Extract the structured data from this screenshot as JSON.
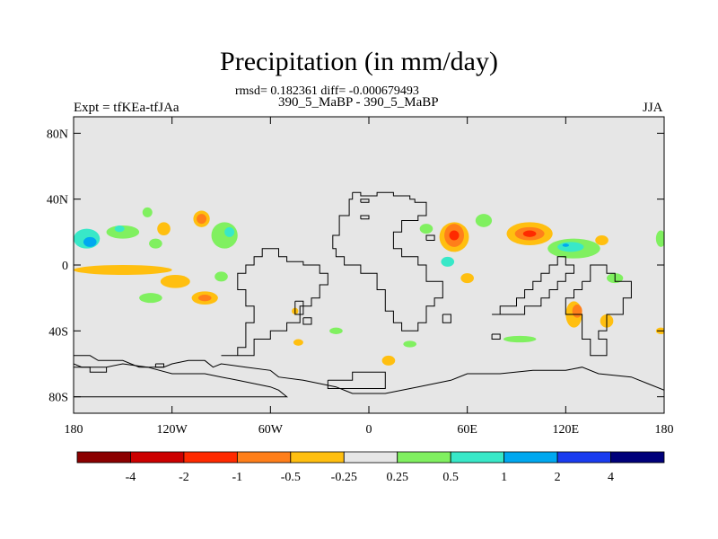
{
  "header": {
    "title": "Precipitation (in mm/day)",
    "stats": "rmsd= 0.182361 diff= -0.000679493",
    "case": "390_5_MaBP - 390_5_MaBP",
    "expt": "Expt = tfKEa-tfJAa",
    "season": "JJA"
  },
  "chart_data": {
    "type": "heatmap",
    "title": "Precipitation (in mm/day)",
    "xlim": [
      -180,
      180
    ],
    "ylim": [
      -90,
      90
    ],
    "x_ticks": [
      {
        "value": -180,
        "label": "180"
      },
      {
        "value": -120,
        "label": "120W"
      },
      {
        "value": -60,
        "label": "60W"
      },
      {
        "value": 0,
        "label": "0"
      },
      {
        "value": 60,
        "label": "60E"
      },
      {
        "value": 120,
        "label": "120E"
      },
      {
        "value": 180,
        "label": "180"
      }
    ],
    "y_ticks": [
      {
        "value": 80,
        "label": "80N"
      },
      {
        "value": 40,
        "label": "40N"
      },
      {
        "value": 0,
        "label": "0"
      },
      {
        "value": -40,
        "label": "40S"
      },
      {
        "value": -80,
        "label": "80S"
      }
    ],
    "background_color": "#e6e6e6",
    "colorbar": {
      "levels": [
        -4,
        -2,
        -1,
        -0.5,
        -0.25,
        0.25,
        0.5,
        1,
        2,
        4
      ],
      "labels": [
        "-4",
        "-2",
        "-1",
        "-0.5",
        "-0.25",
        "0.25",
        "0.5",
        "1",
        "2",
        "4"
      ],
      "colors": [
        "#8b0000",
        "#cc0000",
        "#ff2a00",
        "#ff7f1a",
        "#ffbf10",
        "#e6e6e6",
        "#80f060",
        "#38e8c8",
        "#00a8f0",
        "#1a3cf0",
        "#00007a"
      ]
    },
    "anomalies": [
      {
        "lon": -172,
        "lat": 16,
        "rx": 8,
        "ry": 6,
        "level": 0.5
      },
      {
        "lon": -170,
        "lat": 14,
        "rx": 4,
        "ry": 3,
        "level": 1
      },
      {
        "lon": -150,
        "lat": 20,
        "rx": 10,
        "ry": 4,
        "level": 0.25
      },
      {
        "lon": -152,
        "lat": 22,
        "rx": 3,
        "ry": 2,
        "level": 0.5
      },
      {
        "lon": -125,
        "lat": 22,
        "rx": 4,
        "ry": 4,
        "level": -0.25
      },
      {
        "lon": -130,
        "lat": 13,
        "rx": 4,
        "ry": 3,
        "level": 0.25
      },
      {
        "lon": -102,
        "lat": 28,
        "rx": 5,
        "ry": 5,
        "level": -0.25
      },
      {
        "lon": -102,
        "lat": 28,
        "rx": 3,
        "ry": 3,
        "level": -0.5
      },
      {
        "lon": -88,
        "lat": 18,
        "rx": 8,
        "ry": 8,
        "level": 0.25
      },
      {
        "lon": -85,
        "lat": 20,
        "rx": 3,
        "ry": 3,
        "level": 0.5
      },
      {
        "lon": -135,
        "lat": 32,
        "rx": 3,
        "ry": 3,
        "level": 0.25
      },
      {
        "lon": -150,
        "lat": -3,
        "rx": 30,
        "ry": 3,
        "level": -0.25
      },
      {
        "lon": -118,
        "lat": -10,
        "rx": 9,
        "ry": 4,
        "level": -0.25
      },
      {
        "lon": -100,
        "lat": -20,
        "rx": 8,
        "ry": 4,
        "level": -0.25
      },
      {
        "lon": -100,
        "lat": -20,
        "rx": 4,
        "ry": 2,
        "level": -0.5
      },
      {
        "lon": -133,
        "lat": -20,
        "rx": 7,
        "ry": 3,
        "level": 0.25
      },
      {
        "lon": -90,
        "lat": -7,
        "rx": 4,
        "ry": 3,
        "level": 0.25
      },
      {
        "lon": 52,
        "lat": 17,
        "rx": 9,
        "ry": 9,
        "level": -0.25
      },
      {
        "lon": 52,
        "lat": 18,
        "rx": 6,
        "ry": 7,
        "level": -0.5
      },
      {
        "lon": 52,
        "lat": 18,
        "rx": 3,
        "ry": 3,
        "level": -1
      },
      {
        "lon": 48,
        "lat": 2,
        "rx": 4,
        "ry": 3,
        "level": 0.5
      },
      {
        "lon": 70,
        "lat": 27,
        "rx": 5,
        "ry": 4,
        "level": 0.25
      },
      {
        "lon": 98,
        "lat": 19,
        "rx": 14,
        "ry": 7,
        "level": -0.25
      },
      {
        "lon": 98,
        "lat": 19,
        "rx": 9,
        "ry": 4,
        "level": -0.5
      },
      {
        "lon": 98,
        "lat": 19,
        "rx": 4,
        "ry": 2,
        "level": -1
      },
      {
        "lon": 125,
        "lat": 10,
        "rx": 16,
        "ry": 6,
        "level": 0.25
      },
      {
        "lon": 123,
        "lat": 11,
        "rx": 8,
        "ry": 3,
        "level": 0.5
      },
      {
        "lon": 120,
        "lat": 12,
        "rx": 2,
        "ry": 1,
        "level": 1
      },
      {
        "lon": 142,
        "lat": 15,
        "rx": 4,
        "ry": 3,
        "level": -0.25
      },
      {
        "lon": 178,
        "lat": 16,
        "rx": 3,
        "ry": 5,
        "level": 0.25
      },
      {
        "lon": 35,
        "lat": 22,
        "rx": 4,
        "ry": 3,
        "level": 0.25
      },
      {
        "lon": 125,
        "lat": -30,
        "rx": 5,
        "ry": 8,
        "level": -0.25
      },
      {
        "lon": 127,
        "lat": -28,
        "rx": 3,
        "ry": 4,
        "level": -0.5
      },
      {
        "lon": 145,
        "lat": -34,
        "rx": 4,
        "ry": 4,
        "level": -0.25
      },
      {
        "lon": 92,
        "lat": -45,
        "rx": 10,
        "ry": 2,
        "level": 0.25
      },
      {
        "lon": 150,
        "lat": -8,
        "rx": 5,
        "ry": 3,
        "level": 0.25
      },
      {
        "lon": 60,
        "lat": -8,
        "rx": 4,
        "ry": 3,
        "level": -0.25
      },
      {
        "lon": 12,
        "lat": -58,
        "rx": 4,
        "ry": 3,
        "level": -0.25
      },
      {
        "lon": -43,
        "lat": -47,
        "rx": 3,
        "ry": 2,
        "level": -0.25
      },
      {
        "lon": -20,
        "lat": -40,
        "rx": 4,
        "ry": 2,
        "level": 0.25
      },
      {
        "lon": 25,
        "lat": -48,
        "rx": 4,
        "ry": 2,
        "level": 0.25
      },
      {
        "lon": -45,
        "lat": -28,
        "rx": 2,
        "ry": 2,
        "level": -0.25
      },
      {
        "lon": 178,
        "lat": -40,
        "rx": 3,
        "ry": 2,
        "level": -0.25
      }
    ],
    "coastlines": [
      [
        [
          -10,
          44
        ],
        [
          -5,
          44
        ],
        [
          -5,
          42
        ],
        [
          5,
          42
        ],
        [
          5,
          44
        ],
        [
          15,
          44
        ],
        [
          15,
          42
        ],
        [
          25,
          42
        ],
        [
          25,
          40
        ],
        [
          28,
          40
        ],
        [
          28,
          38
        ],
        [
          35,
          38
        ],
        [
          35,
          30
        ],
        [
          30,
          30
        ],
        [
          30,
          27
        ],
        [
          20,
          27
        ],
        [
          20,
          20
        ],
        [
          15,
          20
        ],
        [
          15,
          10
        ],
        [
          20,
          10
        ],
        [
          20,
          5
        ],
        [
          30,
          5
        ],
        [
          30,
          0
        ],
        [
          35,
          0
        ],
        [
          35,
          -10
        ],
        [
          45,
          -10
        ],
        [
          45,
          -20
        ],
        [
          40,
          -20
        ],
        [
          40,
          -25
        ],
        [
          35,
          -25
        ],
        [
          35,
          -35
        ],
        [
          30,
          -35
        ],
        [
          30,
          -40
        ],
        [
          20,
          -40
        ],
        [
          20,
          -35
        ],
        [
          15,
          -35
        ],
        [
          15,
          -28
        ],
        [
          10,
          -28
        ],
        [
          10,
          -15
        ],
        [
          5,
          -15
        ],
        [
          5,
          -5
        ],
        [
          -5,
          -5
        ],
        [
          -5,
          0
        ],
        [
          -15,
          0
        ],
        [
          -15,
          5
        ],
        [
          -20,
          5
        ],
        [
          -20,
          10
        ],
        [
          -22,
          10
        ],
        [
          -22,
          18
        ],
        [
          -18,
          18
        ],
        [
          -18,
          30
        ],
        [
          -12,
          30
        ],
        [
          -12,
          40
        ],
        [
          -10,
          40
        ],
        [
          -10,
          44
        ]
      ],
      [
        [
          -25,
          -70
        ],
        [
          -10,
          -70
        ],
        [
          -10,
          -65
        ],
        [
          10,
          -65
        ],
        [
          10,
          -75
        ],
        [
          -25,
          -75
        ],
        [
          -25,
          -70
        ]
      ],
      [
        [
          -90,
          -55
        ],
        [
          -70,
          -55
        ],
        [
          -70,
          -45
        ],
        [
          -60,
          -45
        ],
        [
          -60,
          -40
        ],
        [
          -50,
          -40
        ],
        [
          -50,
          -35
        ],
        [
          -42,
          -35
        ],
        [
          -42,
          -25
        ],
        [
          -35,
          -25
        ],
        [
          -35,
          -20
        ],
        [
          -30,
          -20
        ],
        [
          -30,
          -12
        ],
        [
          -25,
          -12
        ],
        [
          -25,
          -5
        ],
        [
          -30,
          -5
        ],
        [
          -30,
          0
        ],
        [
          -40,
          0
        ],
        [
          -40,
          2
        ],
        [
          -50,
          2
        ],
        [
          -50,
          5
        ],
        [
          -55,
          5
        ],
        [
          -55,
          10
        ],
        [
          -65,
          10
        ],
        [
          -65,
          5
        ],
        [
          -70,
          5
        ],
        [
          -70,
          0
        ],
        [
          -75,
          0
        ],
        [
          -75,
          -5
        ],
        [
          -80,
          -5
        ],
        [
          -80,
          -15
        ],
        [
          -75,
          -15
        ],
        [
          -75,
          -25
        ],
        [
          -70,
          -25
        ],
        [
          -70,
          -35
        ],
        [
          -75,
          -35
        ],
        [
          -75,
          -50
        ],
        [
          -80,
          -50
        ],
        [
          -80,
          -55
        ],
        [
          -90,
          -55
        ]
      ],
      [
        [
          -180,
          -55
        ],
        [
          -170,
          -55
        ],
        [
          -165,
          -58
        ],
        [
          -150,
          -58
        ],
        [
          -140,
          -62
        ],
        [
          -125,
          -62
        ],
        [
          -120,
          -60
        ],
        [
          -110,
          -58
        ],
        [
          -100,
          -58
        ],
        [
          -95,
          -62
        ],
        [
          -90,
          -60
        ],
        [
          -75,
          -62
        ],
        [
          -60,
          -64
        ],
        [
          -55,
          -68
        ],
        [
          -40,
          -70
        ],
        [
          -30,
          -72
        ],
        [
          -20,
          -74
        ],
        [
          -10,
          -78
        ],
        [
          10,
          -78
        ],
        [
          30,
          -74
        ],
        [
          50,
          -70
        ],
        [
          60,
          -66
        ],
        [
          80,
          -66
        ],
        [
          100,
          -64
        ],
        [
          120,
          -64
        ],
        [
          130,
          -62
        ],
        [
          140,
          -66
        ],
        [
          160,
          -68
        ],
        [
          170,
          -72
        ],
        [
          180,
          -76
        ]
      ],
      [
        [
          -180,
          -60
        ],
        [
          -175,
          -62
        ],
        [
          -160,
          -62
        ],
        [
          -150,
          -60
        ],
        [
          -135,
          -62
        ],
        [
          -120,
          -66
        ],
        [
          -100,
          -66
        ],
        [
          -90,
          -68
        ],
        [
          -80,
          -70
        ],
        [
          -70,
          -72
        ],
        [
          -60,
          -74
        ],
        [
          -55,
          -76
        ],
        [
          -50,
          -80
        ],
        [
          -180,
          -80
        ]
      ],
      [
        [
          75,
          -30
        ],
        [
          80,
          -30
        ],
        [
          80,
          -25
        ],
        [
          90,
          -25
        ],
        [
          90,
          -20
        ],
        [
          95,
          -20
        ],
        [
          95,
          -15
        ],
        [
          100,
          -15
        ],
        [
          100,
          -10
        ],
        [
          105,
          -10
        ],
        [
          105,
          -5
        ],
        [
          110,
          -5
        ],
        [
          110,
          0
        ],
        [
          115,
          0
        ],
        [
          115,
          5
        ],
        [
          120,
          5
        ],
        [
          120,
          0
        ],
        [
          125,
          0
        ],
        [
          125,
          -5
        ],
        [
          120,
          -5
        ],
        [
          120,
          -10
        ],
        [
          115,
          -10
        ],
        [
          115,
          -15
        ],
        [
          110,
          -15
        ],
        [
          110,
          -20
        ],
        [
          105,
          -20
        ],
        [
          105,
          -25
        ],
        [
          95,
          -25
        ],
        [
          95,
          -30
        ],
        [
          75,
          -30
        ]
      ],
      [
        [
          130,
          -10
        ],
        [
          135,
          -10
        ],
        [
          135,
          0
        ],
        [
          145,
          0
        ],
        [
          145,
          -5
        ],
        [
          150,
          -5
        ],
        [
          150,
          -10
        ],
        [
          160,
          -10
        ],
        [
          160,
          -20
        ],
        [
          155,
          -20
        ],
        [
          155,
          -30
        ],
        [
          145,
          -30
        ],
        [
          145,
          -40
        ],
        [
          140,
          -40
        ],
        [
          140,
          -45
        ],
        [
          145,
          -45
        ],
        [
          145,
          -55
        ],
        [
          135,
          -55
        ],
        [
          135,
          -45
        ],
        [
          130,
          -45
        ],
        [
          130,
          -30
        ],
        [
          120,
          -30
        ],
        [
          120,
          -20
        ],
        [
          125,
          -20
        ],
        [
          125,
          -15
        ],
        [
          130,
          -15
        ],
        [
          130,
          -10
        ]
      ],
      [
        [
          -45,
          -22
        ],
        [
          -40,
          -22
        ],
        [
          -40,
          -30
        ],
        [
          -45,
          -30
        ],
        [
          -45,
          -22
        ]
      ],
      [
        [
          -40,
          -32
        ],
        [
          -35,
          -32
        ],
        [
          -35,
          -36
        ],
        [
          -40,
          -36
        ],
        [
          -40,
          -32
        ]
      ],
      [
        [
          45,
          -30
        ],
        [
          50,
          -30
        ],
        [
          50,
          -35
        ],
        [
          45,
          -35
        ],
        [
          45,
          -30
        ]
      ],
      [
        [
          -5,
          28
        ],
        [
          0,
          28
        ],
        [
          0,
          30
        ],
        [
          -5,
          30
        ],
        [
          -5,
          28
        ]
      ],
      [
        [
          35,
          15
        ],
        [
          40,
          15
        ],
        [
          40,
          18
        ],
        [
          35,
          18
        ],
        [
          35,
          15
        ]
      ],
      [
        [
          -5,
          38
        ],
        [
          0,
          38
        ],
        [
          0,
          40
        ],
        [
          -5,
          40
        ],
        [
          -5,
          38
        ]
      ],
      [
        [
          75,
          -42
        ],
        [
          80,
          -42
        ],
        [
          80,
          -45
        ],
        [
          75,
          -45
        ],
        [
          75,
          -42
        ]
      ],
      [
        [
          -180,
          -62
        ],
        [
          -170,
          -62
        ],
        [
          -170,
          -65
        ],
        [
          -160,
          -65
        ],
        [
          -160,
          -62
        ]
      ],
      [
        [
          -130,
          -60
        ],
        [
          -125,
          -60
        ],
        [
          -125,
          -62
        ],
        [
          -130,
          -62
        ],
        [
          -130,
          -60
        ]
      ]
    ]
  }
}
